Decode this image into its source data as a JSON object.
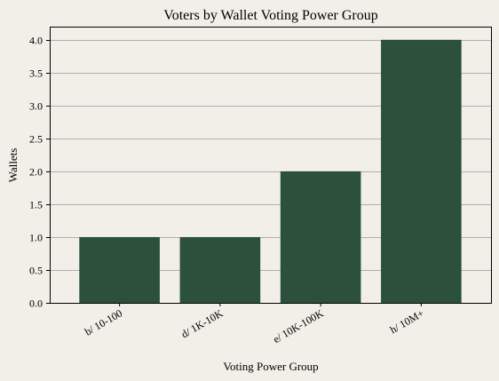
{
  "chart_data": {
    "type": "bar",
    "title": "Voters by Wallet Voting Power Group",
    "xlabel": "Voting Power Group",
    "ylabel": "Wallets",
    "categories": [
      "b/ 10-100",
      "d/ 1K-10K",
      "e/ 10K-100K",
      "h/ 10M+"
    ],
    "values": [
      1,
      1,
      2,
      4
    ],
    "ylim": [
      0,
      4.2
    ],
    "yticks": [
      "0.0",
      "0.5",
      "1.0",
      "1.5",
      "2.0",
      "2.5",
      "3.0",
      "3.5",
      "4.0"
    ],
    "grid": "horizontal",
    "colors": {
      "bar": "#2b513c",
      "grid": "#b0b0b0",
      "background": "#f2efe9",
      "axis": "#000000"
    }
  }
}
